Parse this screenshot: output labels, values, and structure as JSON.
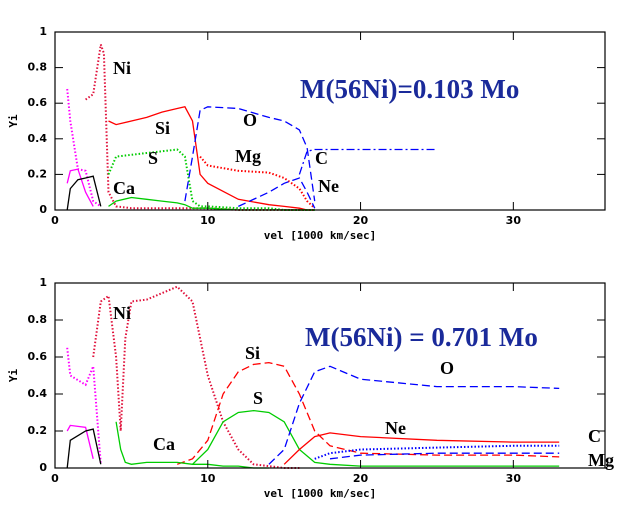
{
  "chart_data": [
    {
      "type": "line",
      "xlabel": "vel [1000 km/sec]",
      "ylabel": "Yi",
      "annotation": "M(56Ni)=0.103 Mo",
      "xlim": [
        0,
        36
      ],
      "ylim": [
        0,
        1
      ],
      "xticks": [
        0,
        10,
        20,
        30
      ],
      "yticks": [
        0,
        0.2,
        0.4,
        0.6,
        0.8,
        1
      ],
      "x": [
        0.8,
        1,
        1.5,
        2,
        2.5,
        3,
        3.2,
        3.5,
        4,
        5,
        6,
        7,
        8,
        8.5,
        9,
        9.5,
        10,
        12,
        14,
        15,
        16,
        16.5,
        17,
        20,
        25
      ],
      "series": [
        {
          "name": "Ni",
          "color": "#e0103a",
          "dash": "dotted",
          "values": [
            null,
            null,
            null,
            0.62,
            0.65,
            0.93,
            0.88,
            0.1,
            0.02,
            0.01,
            0.01,
            0.01,
            0.01,
            0.01,
            0.01,
            0.01,
            0.01,
            0,
            0,
            0,
            0,
            0,
            0,
            null,
            null
          ]
        },
        {
          "name": "Si",
          "color": "#ff0000",
          "dash": "solid",
          "values": [
            null,
            null,
            null,
            null,
            null,
            null,
            null,
            0.5,
            0.48,
            0.5,
            0.52,
            0.55,
            0.57,
            0.58,
            0.5,
            0.2,
            0.15,
            0.06,
            0.03,
            0.02,
            0.01,
            0,
            0,
            null,
            null
          ]
        },
        {
          "name": "S",
          "color": "#00cc00",
          "dash": "dotted",
          "values": [
            null,
            null,
            null,
            null,
            null,
            null,
            null,
            0.2,
            0.3,
            0.31,
            0.32,
            0.33,
            0.34,
            0.3,
            0.05,
            0.02,
            0.02,
            0.01,
            0.01,
            0,
            0,
            0,
            0,
            null,
            null
          ]
        },
        {
          "name": "O",
          "color": "#0000ff",
          "dash": "dashed",
          "values": [
            null,
            null,
            null,
            null,
            null,
            null,
            null,
            null,
            null,
            null,
            null,
            null,
            null,
            0.05,
            0.3,
            0.56,
            0.58,
            0.57,
            0.52,
            0.5,
            0.45,
            0.35,
            0.05,
            null,
            null
          ]
        },
        {
          "name": "Mg",
          "color": "#ff0000",
          "dash": "dotted",
          "values": [
            null,
            null,
            null,
            null,
            null,
            null,
            null,
            null,
            null,
            null,
            null,
            null,
            null,
            null,
            null,
            0.3,
            0.25,
            0.22,
            0.21,
            0.18,
            0.12,
            0.05,
            0.01,
            null,
            null
          ]
        },
        {
          "name": "C",
          "color": "#0000ff",
          "dash": "dashdot",
          "values": [
            null,
            null,
            null,
            null,
            null,
            null,
            null,
            null,
            null,
            null,
            null,
            null,
            null,
            null,
            null,
            null,
            null,
            null,
            null,
            null,
            0.2,
            0.33,
            0.34,
            0.34,
            0.34
          ]
        },
        {
          "name": "Ne",
          "color": "#0000ff",
          "dash": "dashed",
          "values": [
            null,
            null,
            null,
            null,
            null,
            null,
            null,
            null,
            null,
            null,
            null,
            null,
            null,
            null,
            null,
            null,
            null,
            0.02,
            0.1,
            0.15,
            0.18,
            0.1,
            0.01,
            null,
            null
          ]
        },
        {
          "name": "Ca",
          "color": "#00cc00",
          "dash": "solid",
          "values": [
            null,
            null,
            null,
            null,
            null,
            null,
            null,
            0.02,
            0.05,
            0.07,
            0.06,
            0.05,
            0.04,
            0.03,
            0.01,
            0.01,
            0.01,
            0,
            0,
            0,
            0,
            0,
            0,
            null,
            null
          ]
        },
        {
          "color": "#ff00ff",
          "dash": "dotted",
          "values": [
            0.68,
            0.5,
            0.23,
            0.22,
            0.05,
            0.02,
            null,
            null,
            null,
            null,
            null,
            null,
            null,
            null,
            null,
            null,
            null,
            null,
            null,
            null,
            null,
            null,
            null,
            null,
            null
          ]
        },
        {
          "color": "#ff00ff",
          "dash": "solid",
          "values": [
            0.15,
            0.22,
            0.23,
            0.1,
            0.02,
            null,
            null,
            null,
            null,
            null,
            null,
            null,
            null,
            null,
            null,
            null,
            null,
            null,
            null,
            null,
            null,
            null,
            null,
            null,
            null
          ]
        },
        {
          "color": "#000000",
          "dash": "solid",
          "values": [
            0,
            0.12,
            0.17,
            0.18,
            0.19,
            0.02,
            null,
            null,
            null,
            null,
            null,
            null,
            null,
            null,
            null,
            null,
            null,
            null,
            null,
            null,
            null,
            null,
            null,
            null,
            null
          ]
        }
      ]
    },
    {
      "type": "line",
      "xlabel": "vel [1000 km/sec]",
      "ylabel": "Yi",
      "annotation": "M(56Ni) = 0.701 Mo",
      "xlim": [
        0,
        36
      ],
      "ylim": [
        0,
        1
      ],
      "xticks": [
        0,
        10,
        20,
        30
      ],
      "yticks": [
        0,
        0.2,
        0.4,
        0.6,
        0.8,
        1
      ],
      "x": [
        0.8,
        1,
        2,
        2.5,
        3,
        3.5,
        4,
        4.3,
        4.6,
        5,
        6,
        8,
        9,
        10,
        11,
        12,
        13,
        14,
        15,
        16,
        17,
        18,
        20,
        25,
        30,
        33
      ],
      "series": [
        {
          "name": "Ni",
          "color": "#e0103a",
          "dash": "dotted",
          "values": [
            null,
            null,
            null,
            0.6,
            0.9,
            0.93,
            0.6,
            0.2,
            0.7,
            0.9,
            0.91,
            0.98,
            0.9,
            0.5,
            0.25,
            0.1,
            0.02,
            0.01,
            0,
            0,
            null,
            null,
            null,
            null,
            null,
            null
          ]
        },
        {
          "name": "Si",
          "color": "#ff0000",
          "dash": "dashed",
          "values": [
            null,
            null,
            null,
            null,
            null,
            null,
            null,
            null,
            null,
            null,
            null,
            0.02,
            0.05,
            0.15,
            0.4,
            0.52,
            0.56,
            0.57,
            0.55,
            0.4,
            0.2,
            0.12,
            0.08,
            0.07,
            0.07,
            0.06
          ]
        },
        {
          "name": "S",
          "color": "#00cc00",
          "dash": "solid",
          "values": [
            null,
            null,
            null,
            null,
            null,
            null,
            null,
            null,
            null,
            null,
            null,
            null,
            0.02,
            0.1,
            0.25,
            0.3,
            0.31,
            0.3,
            0.25,
            0.1,
            0.03,
            0.02,
            0.01,
            0.01,
            0.01,
            0.01
          ]
        },
        {
          "name": "O",
          "color": "#0000ff",
          "dash": "dashed",
          "values": [
            null,
            null,
            null,
            null,
            null,
            null,
            null,
            null,
            null,
            null,
            null,
            null,
            null,
            null,
            null,
            null,
            null,
            0.02,
            0.1,
            0.35,
            0.52,
            0.55,
            0.48,
            0.44,
            0.44,
            0.43
          ]
        },
        {
          "name": "Ne",
          "color": "#ff0000",
          "dash": "solid",
          "values": [
            null,
            null,
            null,
            null,
            null,
            null,
            null,
            null,
            null,
            null,
            null,
            null,
            null,
            null,
            null,
            null,
            null,
            null,
            0.02,
            0.1,
            0.17,
            0.19,
            0.17,
            0.15,
            0.14,
            0.14
          ]
        },
        {
          "name": "C",
          "color": "#0000ff",
          "dash": "dotted",
          "values": [
            null,
            null,
            null,
            null,
            null,
            null,
            null,
            null,
            null,
            null,
            null,
            null,
            null,
            null,
            null,
            null,
            null,
            null,
            null,
            null,
            0.05,
            0.08,
            0.1,
            0.11,
            0.12,
            0.12
          ]
        },
        {
          "name": "Mg",
          "color": "#0000ff",
          "dash": "dashed",
          "values": [
            null,
            null,
            null,
            null,
            null,
            null,
            null,
            null,
            null,
            null,
            null,
            null,
            null,
            null,
            null,
            null,
            null,
            null,
            null,
            null,
            null,
            0.05,
            0.07,
            0.08,
            0.08,
            0.08
          ]
        },
        {
          "name": "Ca",
          "color": "#00cc00",
          "dash": "solid",
          "values": [
            null,
            null,
            null,
            null,
            null,
            null,
            0.25,
            0.1,
            0.03,
            0.02,
            0.03,
            0.03,
            0.02,
            0.02,
            0.01,
            0.01,
            0,
            0,
            null,
            null,
            null,
            null,
            null,
            null,
            null,
            null
          ]
        },
        {
          "color": "#ff00ff",
          "dash": "dotted",
          "values": [
            0.65,
            0.5,
            0.45,
            0.55,
            0.02,
            null,
            null,
            null,
            null,
            null,
            null,
            null,
            null,
            null,
            null,
            null,
            null,
            null,
            null,
            null,
            null,
            null,
            null,
            null,
            null,
            null
          ]
        },
        {
          "color": "#ff00ff",
          "dash": "solid",
          "values": [
            0.2,
            0.23,
            0.22,
            0.05,
            null,
            null,
            null,
            null,
            null,
            null,
            null,
            null,
            null,
            null,
            null,
            null,
            null,
            null,
            null,
            null,
            null,
            null,
            null,
            null,
            null,
            null
          ]
        },
        {
          "color": "#000000",
          "dash": "solid",
          "values": [
            0,
            0.15,
            0.2,
            0.21,
            0.02,
            null,
            null,
            null,
            null,
            null,
            null,
            null,
            null,
            null,
            null,
            null,
            null,
            null,
            null,
            null,
            null,
            null,
            null,
            null,
            null,
            null
          ]
        }
      ]
    }
  ]
}
